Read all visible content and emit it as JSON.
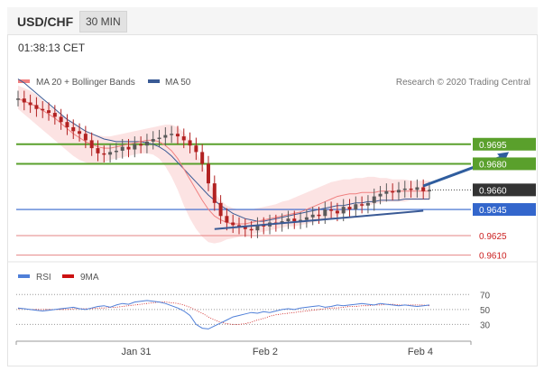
{
  "header": {
    "symbol": "USD/CHF",
    "timeframe": "30 MIN",
    "timestamp": "01:38:13 CET"
  },
  "legend": {
    "ma20_bb": "MA 20 + Bollinger Bands",
    "ma50": "MA 50",
    "copyright": "Research © 2020 Trading Central",
    "rsi": "RSI",
    "ma9": "9MA"
  },
  "colors": {
    "ma20": "#f08080",
    "ma50": "#3a5a95",
    "bollinger_fill": "#fbd9d9",
    "resistance": "#5aa02c",
    "support": "#3366cc",
    "pivot": "#333333",
    "target_low": "#e06666",
    "arrow": "#2f5d9e",
    "candle_up": "#5a5a5a",
    "candle_down": "#b22222"
  },
  "chart_data": [
    {
      "type": "line",
      "title": "USD/CHF",
      "x_ticks": [
        "Jan 31",
        "Feb 2",
        "Feb 4"
      ],
      "y_range": [
        0.9598,
        0.9764
      ],
      "price_levels": [
        {
          "label": "0.9695",
          "value": 0.9695,
          "kind": "resistance"
        },
        {
          "label": "0.9680",
          "value": 0.968,
          "kind": "resistance"
        },
        {
          "label": "0.9660",
          "value": 0.966,
          "kind": "pivot"
        },
        {
          "label": "0.9645",
          "value": 0.9645,
          "kind": "support"
        },
        {
          "label": "0.9625",
          "value": 0.9625,
          "kind": "target"
        },
        {
          "label": "0.9610",
          "value": 0.961,
          "kind": "target"
        }
      ],
      "price": [
        0.973,
        0.9727,
        0.9725,
        0.9722,
        0.9721,
        0.9719,
        0.9716,
        0.9712,
        0.9708,
        0.9705,
        0.9703,
        0.9698,
        0.9692,
        0.9688,
        0.9687,
        0.9689,
        0.969,
        0.9693,
        0.9691,
        0.9695,
        0.9694,
        0.9697,
        0.9699,
        0.97,
        0.9702,
        0.9703,
        0.9701,
        0.9698,
        0.9694,
        0.9689,
        0.968,
        0.9665,
        0.965,
        0.964,
        0.9635,
        0.9633,
        0.9632,
        0.963,
        0.9629,
        0.9633,
        0.9632,
        0.9635,
        0.9634,
        0.9636,
        0.9638,
        0.9636,
        0.9637,
        0.9639,
        0.9641,
        0.964,
        0.9645,
        0.9644,
        0.9642,
        0.9647,
        0.9645,
        0.9649,
        0.9648,
        0.965,
        0.9655,
        0.9657,
        0.9659,
        0.9658,
        0.966,
        0.9661,
        0.966,
        0.9662,
        0.9659,
        0.966
      ],
      "ma20": [
        0.973,
        0.9728,
        0.9726,
        0.9724,
        0.9721,
        0.9718,
        0.9715,
        0.9711,
        0.9707,
        0.9703,
        0.97,
        0.9697,
        0.9695,
        0.9693,
        0.9692,
        0.9692,
        0.9693,
        0.9694,
        0.9695,
        0.9696,
        0.9697,
        0.9698,
        0.9698,
        0.9697,
        0.9694,
        0.969,
        0.9684,
        0.9676,
        0.9668,
        0.966,
        0.9652,
        0.9645,
        0.964,
        0.9637,
        0.9635,
        0.9634,
        0.9634,
        0.9634,
        0.9635,
        0.9636,
        0.9637,
        0.9638,
        0.9639,
        0.964,
        0.9641,
        0.9642,
        0.9643,
        0.9645,
        0.9647,
        0.9649,
        0.9651,
        0.9653,
        0.9655,
        0.9656,
        0.9657,
        0.9657,
        0.9658,
        0.9658,
        0.9658,
        0.9659,
        0.9659,
        0.9659,
        0.9659,
        0.9659,
        0.9659,
        0.9659,
        0.9659,
        0.9659
      ],
      "ma50": [
        0.9745,
        0.9742,
        0.9738,
        0.9734,
        0.973,
        0.9726,
        0.9722,
        0.9718,
        0.9714,
        0.9711,
        0.9708,
        0.9705,
        0.9703,
        0.9701,
        0.9699,
        0.9698,
        0.9697,
        0.9697,
        0.9697,
        0.9697,
        0.9697,
        0.9696,
        0.9695,
        0.9693,
        0.969,
        0.9686,
        0.9681,
        0.9676,
        0.9671,
        0.9666,
        0.9661,
        0.9656,
        0.9652,
        0.9648,
        0.9645,
        0.9642,
        0.964,
        0.9638,
        0.9637,
        0.9636,
        0.9636,
        0.9637,
        0.9638,
        0.9639,
        0.964,
        0.9641,
        0.9642,
        0.9643,
        0.9644,
        0.9645,
        0.9646,
        0.9647,
        0.9648,
        0.9648,
        0.9649,
        0.965,
        0.965,
        0.9651,
        0.9651,
        0.9652,
        0.9652,
        0.9652,
        0.9652,
        0.9653,
        0.9653,
        0.9653,
        0.9653,
        0.9653
      ],
      "bb_upper": [
        0.974,
        0.9738,
        0.9736,
        0.9733,
        0.9729,
        0.9725,
        0.9721,
        0.9718,
        0.9715,
        0.9712,
        0.9708,
        0.9705,
        0.9703,
        0.9702,
        0.9701,
        0.9701,
        0.9702,
        0.9703,
        0.9704,
        0.9705,
        0.9706,
        0.9707,
        0.9708,
        0.9709,
        0.971,
        0.971,
        0.9708,
        0.9704,
        0.9698,
        0.969,
        0.968,
        0.9668,
        0.9658,
        0.9652,
        0.9648,
        0.9646,
        0.9645,
        0.9645,
        0.9645,
        0.9646,
        0.9647,
        0.9648,
        0.9649,
        0.9651,
        0.9652,
        0.9654,
        0.9656,
        0.9658,
        0.966,
        0.9662,
        0.9664,
        0.9666,
        0.9667,
        0.9668,
        0.9668,
        0.9669,
        0.9669,
        0.967,
        0.967,
        0.9669,
        0.9669,
        0.9668,
        0.9668,
        0.9668,
        0.9667,
        0.9667,
        0.9667,
        0.9667
      ],
      "bb_lower": [
        0.9722,
        0.9718,
        0.9714,
        0.971,
        0.9706,
        0.9702,
        0.9698,
        0.9694,
        0.969,
        0.9686,
        0.9683,
        0.9681,
        0.968,
        0.968,
        0.9681,
        0.9683,
        0.9684,
        0.9685,
        0.9686,
        0.9687,
        0.9688,
        0.9688,
        0.9687,
        0.9684,
        0.9678,
        0.967,
        0.966,
        0.9648,
        0.9638,
        0.963,
        0.9624,
        0.962,
        0.9619,
        0.962,
        0.9622,
        0.9623,
        0.9624,
        0.9625,
        0.9626,
        0.9627,
        0.9628,
        0.9629,
        0.963,
        0.9631,
        0.9632,
        0.9632,
        0.9633,
        0.9634,
        0.9635,
        0.9636,
        0.9637,
        0.9638,
        0.964,
        0.9642,
        0.9644,
        0.9646,
        0.9647,
        0.9648,
        0.9649,
        0.965,
        0.9651,
        0.9651,
        0.9651,
        0.9651,
        0.9652,
        0.9652,
        0.9652,
        0.9652
      ],
      "support_trendline": [
        [
          32,
          0.963
        ],
        [
          66,
          0.9644
        ]
      ],
      "target_arrow": [
        [
          66,
          0.9663
        ],
        [
          77,
          0.9689
        ]
      ]
    },
    {
      "type": "line",
      "title": "RSI",
      "y_ticks": [
        70,
        50,
        30
      ],
      "y_range": [
        10,
        80
      ],
      "rsi": [
        52,
        51,
        50,
        49,
        48,
        49,
        50,
        51,
        52,
        53,
        51,
        50,
        52,
        54,
        55,
        53,
        56,
        58,
        57,
        60,
        61,
        62,
        61,
        60,
        58,
        55,
        52,
        48,
        42,
        30,
        25,
        24,
        28,
        32,
        36,
        40,
        42,
        44,
        46,
        45,
        47,
        46,
        48,
        50,
        51,
        50,
        52,
        53,
        54,
        55,
        53,
        54,
        56,
        55,
        56,
        57,
        58,
        57,
        56,
        58,
        57,
        56,
        55,
        56,
        55,
        54,
        55,
        56
      ],
      "ma9": [
        51,
        51,
        50,
        50,
        50,
        50,
        50,
        50,
        50,
        51,
        51,
        51,
        51,
        52,
        52,
        53,
        53,
        54,
        55,
        56,
        57,
        58,
        59,
        60,
        60,
        59,
        58,
        56,
        53,
        49,
        45,
        40,
        36,
        33,
        31,
        30,
        30,
        31,
        33,
        36,
        38,
        41,
        43,
        44,
        45,
        46,
        47,
        48,
        49,
        50,
        51,
        52,
        52,
        53,
        54,
        54,
        55,
        55,
        56,
        56,
        57,
        57,
        56,
        56,
        56,
        56,
        56,
        55
      ]
    }
  ]
}
